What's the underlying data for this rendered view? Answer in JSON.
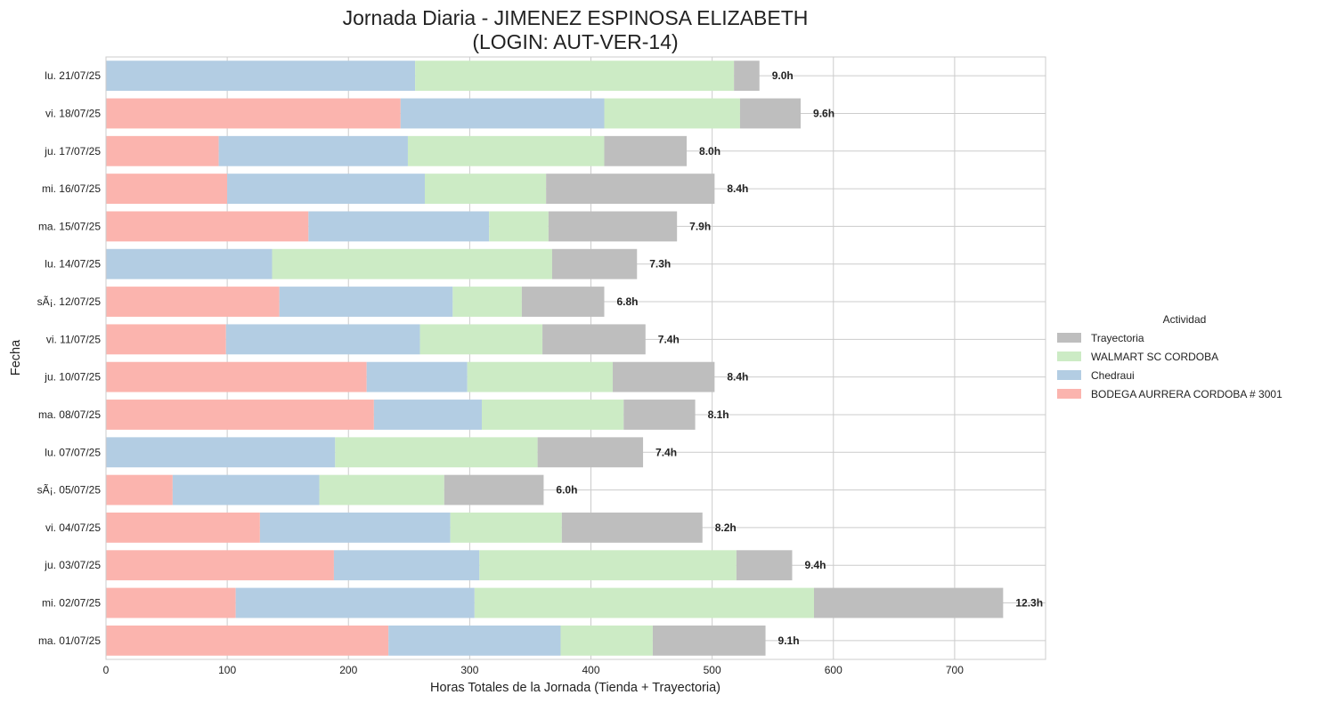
{
  "chart_data": {
    "type": "bar",
    "orientation": "horizontal",
    "stacked": true,
    "title": "Jornada Diaria - JIMENEZ ESPINOSA ELIZABETH",
    "subtitle": "(LOGIN: AUT-VER-14)",
    "xlabel": "Horas Totales de la Jornada (Tienda + Trayectoria)",
    "ylabel": "Fecha",
    "xlim": [
      0,
      775
    ],
    "xticks": [
      0,
      100,
      200,
      300,
      400,
      500,
      600,
      700
    ],
    "grid": true,
    "legend_title": "Actividad",
    "legend_position": "right",
    "categories": [
      "lu. 21/07/25",
      "vi. 18/07/25",
      "ju. 17/07/25",
      "mi. 16/07/25",
      "ma. 15/07/25",
      "lu. 14/07/25",
      "sÃ¡. 12/07/25",
      "vi. 11/07/25",
      "ju. 10/07/25",
      "ma. 08/07/25",
      "lu. 07/07/25",
      "sÃ¡. 05/07/25",
      "vi. 04/07/25",
      "ju. 03/07/25",
      "mi. 02/07/25",
      "ma. 01/07/25"
    ],
    "series": [
      {
        "name": "BODEGA AURRERA CORDOBA # 3001",
        "color": "#fbb4ae",
        "values": [
          0,
          243,
          93,
          100,
          167,
          0,
          143,
          99,
          215,
          221,
          0,
          55,
          127,
          188,
          107,
          233
        ]
      },
      {
        "name": "Chedraui",
        "color": "#b3cde3",
        "values": [
          255,
          168,
          156,
          163,
          149,
          137,
          143,
          160,
          83,
          89,
          189,
          121,
          157,
          120,
          197,
          142
        ]
      },
      {
        "name": "WALMART SC CORDOBA",
        "color": "#ccebc5",
        "values": [
          263,
          112,
          162,
          100,
          49,
          231,
          57,
          101,
          120,
          117,
          167,
          103,
          92,
          212,
          280,
          76
        ]
      },
      {
        "name": "Trayectoria",
        "color": "#bebebe",
        "values": [
          21,
          50,
          68,
          139,
          106,
          70,
          68,
          85,
          84,
          59,
          87,
          82,
          116,
          46,
          156,
          93
        ]
      }
    ],
    "legend_order": [
      "Trayectoria",
      "WALMART SC CORDOBA",
      "Chedraui",
      "BODEGA AURRERA CORDOBA # 3001"
    ],
    "data_labels": [
      "9.0h",
      "9.6h",
      "8.0h",
      "8.4h",
      "7.9h",
      "7.3h",
      "6.8h",
      "7.4h",
      "8.4h",
      "8.1h",
      "7.4h",
      "6.0h",
      "8.2h",
      "9.4h",
      "12.3h",
      "9.1h"
    ]
  }
}
